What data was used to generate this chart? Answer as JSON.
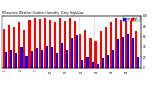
{
  "title": "Milwaukee Weather Outdoor Humidity",
  "subtitle": "Daily High/Low",
  "high_values": [
    75,
    82,
    78,
    88,
    72,
    92,
    95,
    93,
    95,
    92,
    88,
    95,
    90,
    95,
    90,
    65,
    72,
    58,
    52,
    70,
    78,
    88,
    95,
    92,
    95,
    90,
    70
  ],
  "low_values": [
    30,
    35,
    28,
    40,
    22,
    32,
    38,
    35,
    42,
    40,
    28,
    48,
    35,
    58,
    62,
    15,
    20,
    12,
    8,
    18,
    25,
    35,
    55,
    60,
    65,
    58,
    20
  ],
  "x_labels": [
    "1",
    "",
    "",
    "4",
    "",
    "",
    "7",
    "",
    "",
    "10",
    "",
    "",
    "13",
    "",
    "",
    "16",
    "",
    "",
    "19",
    "",
    "",
    "22",
    "",
    "",
    "25",
    "",
    ""
  ],
  "high_color": "#ff0000",
  "low_color": "#0000ff",
  "bg_color": "#ffffff",
  "ylim": [
    0,
    100
  ],
  "bar_width": 0.42,
  "dotted_lines": [
    14.5,
    17.5
  ],
  "legend_high": "High",
  "legend_low": "Low",
  "yticks": [
    0,
    20,
    40,
    60,
    80,
    100
  ]
}
